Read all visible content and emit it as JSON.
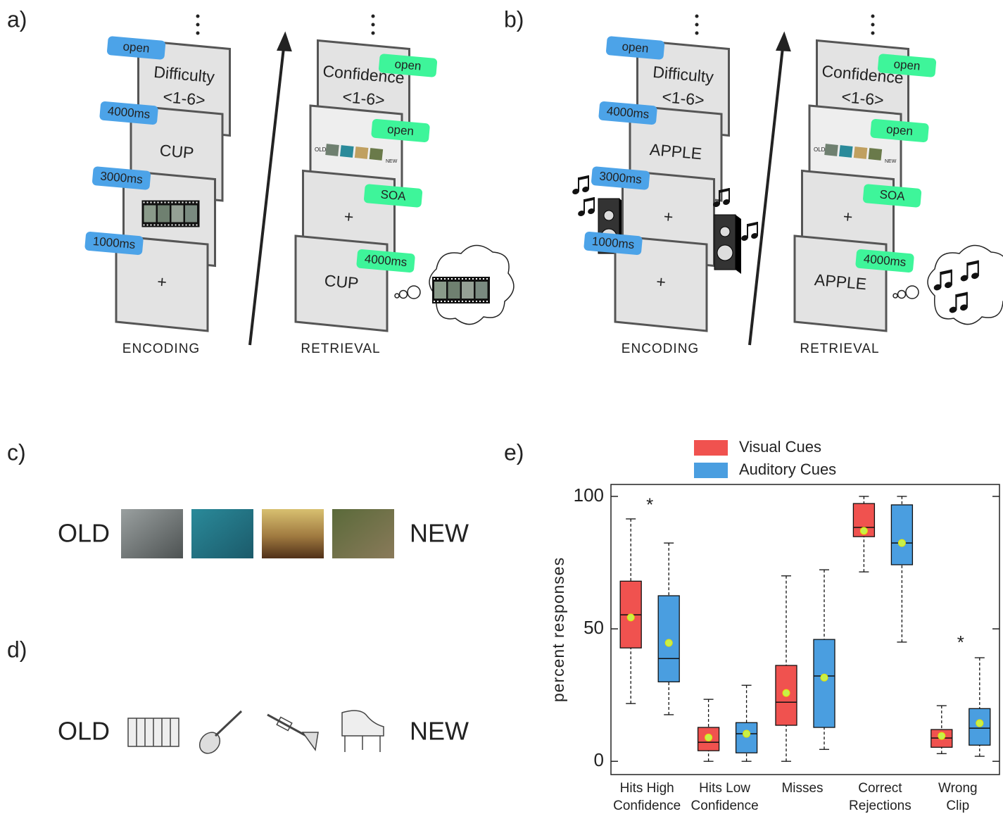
{
  "panel_labels": [
    "a)",
    "b)",
    "c)",
    "d)",
    "e)"
  ],
  "panel_a": {
    "encoding": {
      "stage": "ENCODING",
      "screens": [
        {
          "tag": "open",
          "lines": [
            "Difficulty",
            "<1-6>"
          ]
        },
        {
          "tag": "4000ms",
          "lines": [
            "CUP"
          ]
        },
        {
          "tag": "3000ms",
          "lines": []
        },
        {
          "tag": "1000ms",
          "lines": [
            "+"
          ]
        }
      ]
    },
    "retrieval": {
      "stage": "RETRIEVAL",
      "screens": [
        {
          "tag": "open",
          "lines": [
            "Confidence",
            "<1-6>"
          ]
        },
        {
          "tag": "open",
          "lines": [],
          "scale": [
            "OLD",
            "NEW"
          ]
        },
        {
          "tag": "SOA",
          "lines": [
            "+"
          ]
        },
        {
          "tag": "4000ms",
          "lines": [
            "CUP"
          ]
        }
      ]
    }
  },
  "panel_b": {
    "encoding": {
      "stage": "ENCODING",
      "screens": [
        {
          "tag": "open",
          "lines": [
            "Difficulty",
            "<1-6>"
          ]
        },
        {
          "tag": "4000ms",
          "lines": [
            "APPLE"
          ]
        },
        {
          "tag": "3000ms",
          "lines": [
            "+"
          ]
        },
        {
          "tag": "1000ms",
          "lines": [
            "+"
          ]
        }
      ]
    },
    "retrieval": {
      "stage": "RETRIEVAL",
      "screens": [
        {
          "tag": "open",
          "lines": [
            "Confidence",
            "<1-6>"
          ]
        },
        {
          "tag": "open",
          "lines": [],
          "scale": [
            "OLD",
            "NEW"
          ]
        },
        {
          "tag": "SOA",
          "lines": [
            "+"
          ]
        },
        {
          "tag": "4000ms",
          "lines": [
            "APPLE"
          ]
        }
      ]
    }
  },
  "panel_c": {
    "old": "OLD",
    "new": "NEW"
  },
  "panel_d": {
    "old": "OLD",
    "new": "NEW"
  },
  "chart_data": {
    "type": "box",
    "ylabel": "percent responses",
    "categories": [
      [
        "Hits High",
        "Confidence"
      ],
      [
        "Hits Low",
        "Confidence"
      ],
      [
        "Misses"
      ],
      [
        "Correct",
        "Rejections"
      ],
      [
        "Wrong",
        "Clip"
      ]
    ],
    "ylim": [
      -5,
      104.5
    ],
    "yticks": [
      0,
      50,
      100
    ],
    "series": [
      {
        "name": "Visual Cues",
        "color": "#f0524f",
        "low": [
          21.8,
          0,
          0,
          71.5,
          2.9
        ],
        "q1": [
          42.8,
          4,
          13.6,
          84.8,
          5.3
        ],
        "median": [
          55.3,
          7.2,
          22.3,
          88.3,
          8.8
        ],
        "q3": [
          68,
          12.8,
          36.2,
          97.3,
          12
        ],
        "high": [
          91.5,
          23.4,
          70,
          100,
          21
        ],
        "mean": [
          54.3,
          9,
          25.8,
          87,
          9.6
        ]
      },
      {
        "name": "Auditory Cues",
        "color": "#4a9ee0",
        "low": [
          17.6,
          0,
          4.5,
          45,
          1.9
        ],
        "q1": [
          30,
          3.2,
          12.8,
          74.2,
          6.1
        ],
        "median": [
          38.8,
          10.4,
          32.2,
          82.4,
          12.5
        ],
        "q3": [
          62.5,
          14.6,
          46,
          96.8,
          19.9
        ],
        "high": [
          82.4,
          28.7,
          72.3,
          100,
          39.1
        ],
        "mean": [
          44.7,
          10.4,
          31.6,
          82.4,
          14.4
        ]
      }
    ],
    "annotations": [
      {
        "text": "*",
        "category": 0,
        "y": 97.9
      },
      {
        "text": "*",
        "category": 4,
        "y": 46
      }
    ]
  }
}
